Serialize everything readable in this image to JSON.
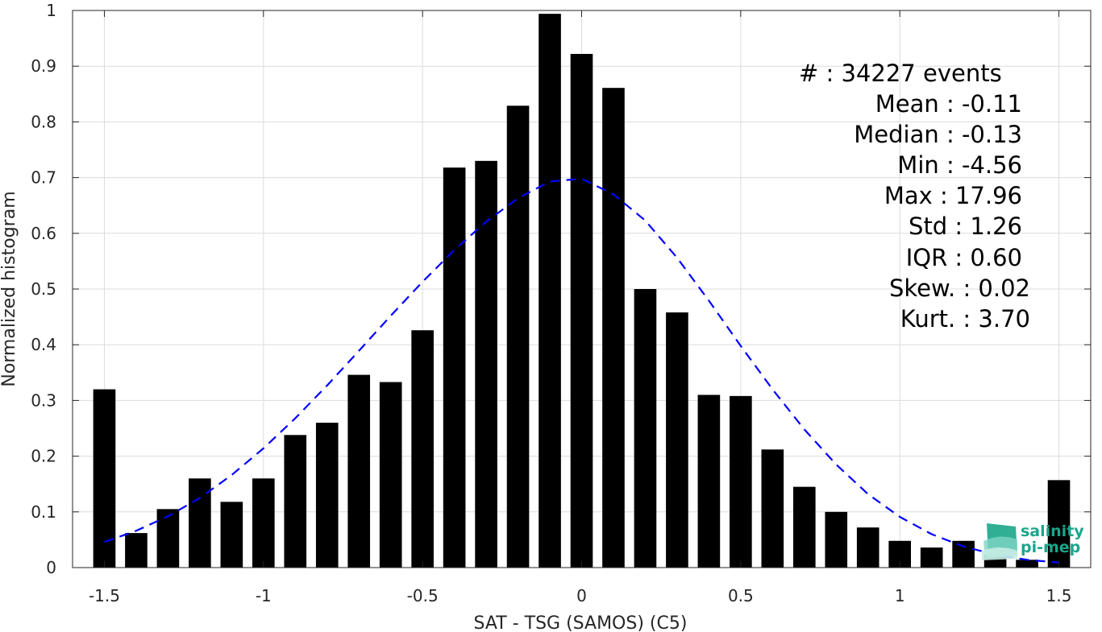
{
  "chart_data": {
    "type": "bar",
    "title": "",
    "xlabel": "SAT - TSG (SAMOS) (C5)",
    "ylabel": "Normalized histogram",
    "xlim": [
      -1.6,
      1.6
    ],
    "ylim": [
      0,
      1
    ],
    "x_ticks": [
      -1.5,
      -1,
      -0.5,
      0,
      0.5,
      1,
      1.5
    ],
    "x_tick_labels": [
      "-1.5",
      "-1",
      "-0.5",
      "0",
      "0.5",
      "1",
      "1.5"
    ],
    "y_ticks": [
      0,
      0.1,
      0.2,
      0.3,
      0.4,
      0.5,
      0.6,
      0.7,
      0.8,
      0.9,
      1
    ],
    "y_tick_labels": [
      "0",
      "0.1",
      "0.2",
      "0.3",
      "0.4",
      "0.5",
      "0.6",
      "0.7",
      "0.8",
      "0.9",
      "1"
    ],
    "grid": true,
    "bar_color": "#000000",
    "bar_width": 0.07,
    "bars": {
      "x": [
        -1.5,
        -1.4,
        -1.3,
        -1.2,
        -1.1,
        -1.0,
        -0.9,
        -0.8,
        -0.7,
        -0.6,
        -0.5,
        -0.4,
        -0.3,
        -0.2,
        -0.1,
        0.0,
        0.1,
        0.2,
        0.3,
        0.4,
        0.5,
        0.6,
        0.7,
        0.8,
        0.9,
        1.0,
        1.1,
        1.2,
        1.3,
        1.4,
        1.5
      ],
      "values": [
        0.32,
        0.062,
        0.105,
        0.16,
        0.118,
        0.16,
        0.238,
        0.26,
        0.346,
        0.333,
        0.426,
        0.718,
        0.73,
        0.829,
        0.994,
        0.922,
        0.861,
        0.5,
        0.458,
        0.31,
        0.308,
        0.212,
        0.145,
        0.1,
        0.072,
        0.048,
        0.036,
        0.048,
        0.024,
        0.014,
        0.157
      ]
    },
    "fit_curve": {
      "style": "dashed",
      "color": "#0000ff",
      "x": [
        -1.5,
        -1.4,
        -1.3,
        -1.2,
        -1.1,
        -1.0,
        -0.9,
        -0.8,
        -0.7,
        -0.6,
        -0.5,
        -0.4,
        -0.3,
        -0.2,
        -0.1,
        0.0,
        0.1,
        0.2,
        0.3,
        0.4,
        0.5,
        0.6,
        0.7,
        0.8,
        0.9,
        1.0,
        1.1,
        1.2,
        1.3,
        1.4,
        1.5
      ],
      "values": [
        0.046,
        0.066,
        0.092,
        0.125,
        0.166,
        0.214,
        0.268,
        0.327,
        0.389,
        0.452,
        0.513,
        0.57,
        0.621,
        0.663,
        0.693,
        0.698,
        0.67,
        0.623,
        0.556,
        0.479,
        0.398,
        0.32,
        0.248,
        0.185,
        0.132,
        0.091,
        0.06,
        0.038,
        0.023,
        0.014,
        0.009
      ]
    },
    "annotations": [
      "#  : 34227 events",
      "Mean : -0.11",
      "Median : -0.13",
      "Min : -4.56",
      "Max : 17.96",
      "Std : 1.26",
      "IQR : 0.60",
      "Skew. : 0.02",
      "Kurt. : 3.70"
    ]
  },
  "logo": {
    "line1": "salinity",
    "line2": "pi-mep",
    "color": "#1aa68a"
  }
}
